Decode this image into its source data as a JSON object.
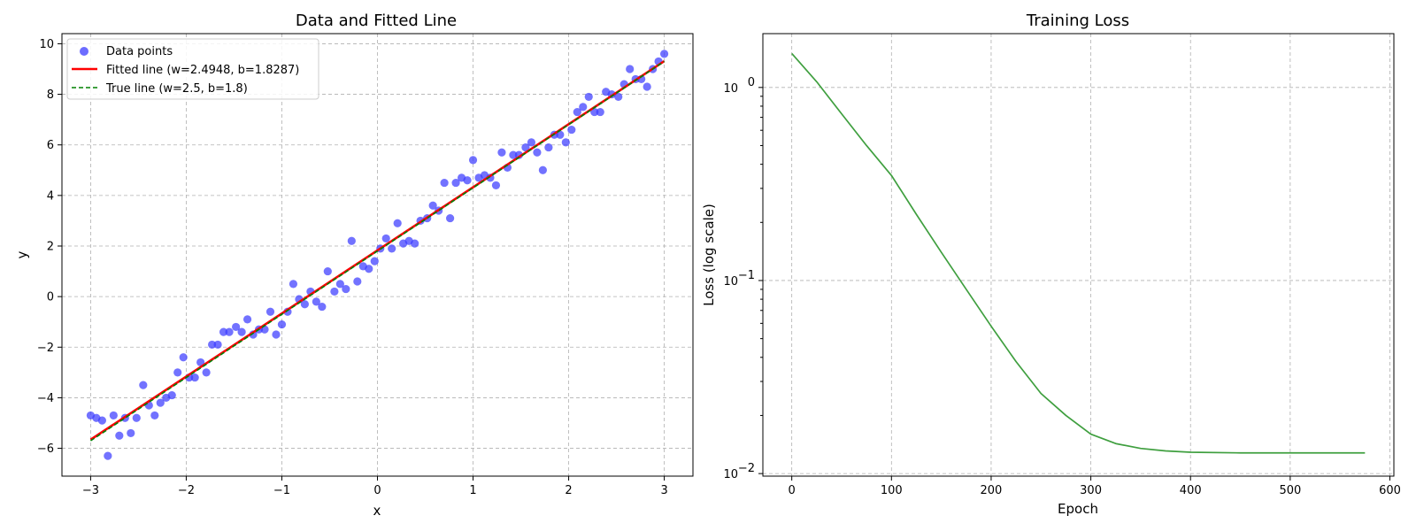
{
  "chart_data": [
    {
      "type": "scatter",
      "title": "Data and Fitted Line",
      "xlabel": "x",
      "ylabel": "y",
      "xlim": [
        -3.3,
        3.3
      ],
      "ylim": [
        -7.1,
        10.4
      ],
      "xticks": [
        -3,
        -2,
        -1,
        0,
        1,
        2,
        3
      ],
      "xtick_labels": [
        "−3",
        "−2",
        "−1",
        "0",
        "1",
        "2",
        "3"
      ],
      "yticks": [
        -6,
        -4,
        -2,
        0,
        2,
        4,
        6,
        8,
        10
      ],
      "ytick_labels": [
        "−6",
        "−4",
        "−2",
        "0",
        "2",
        "4",
        "6",
        "8",
        "10"
      ],
      "grid": true,
      "legend_position": "top-left",
      "series": [
        {
          "name": "Data points",
          "kind": "scatter",
          "color": "#3b3bff",
          "x": [
            -3.0,
            -2.94,
            -2.88,
            -2.82,
            -2.76,
            -2.7,
            -2.64,
            -2.58,
            -2.52,
            -2.45,
            -2.39,
            -2.33,
            -2.27,
            -2.21,
            -2.15,
            -2.09,
            -2.03,
            -1.97,
            -1.91,
            -1.85,
            -1.79,
            -1.73,
            -1.67,
            -1.61,
            -1.55,
            -1.48,
            -1.42,
            -1.36,
            -1.3,
            -1.24,
            -1.18,
            -1.12,
            -1.06,
            -1.0,
            -0.94,
            -0.88,
            -0.82,
            -0.76,
            -0.7,
            -0.64,
            -0.58,
            -0.52,
            -0.45,
            -0.39,
            -0.33,
            -0.27,
            -0.21,
            -0.15,
            -0.09,
            -0.03,
            0.03,
            0.09,
            0.15,
            0.21,
            0.27,
            0.33,
            0.39,
            0.45,
            0.52,
            0.58,
            0.64,
            0.7,
            0.76,
            0.82,
            0.88,
            0.94,
            1.0,
            1.06,
            1.12,
            1.18,
            1.24,
            1.3,
            1.36,
            1.42,
            1.48,
            1.55,
            1.61,
            1.67,
            1.73,
            1.79,
            1.85,
            1.91,
            1.97,
            2.03,
            2.09,
            2.15,
            2.21,
            2.27,
            2.33,
            2.39,
            2.45,
            2.52,
            2.58,
            2.64,
            2.7,
            2.76,
            2.82,
            2.88,
            2.94,
            3.0
          ],
          "y": [
            -4.7,
            -4.8,
            -4.9,
            -6.3,
            -4.7,
            -5.5,
            -4.8,
            -5.4,
            -4.8,
            -3.5,
            -4.3,
            -4.7,
            -4.2,
            -4.0,
            -3.9,
            -3.0,
            -2.4,
            -3.2,
            -3.2,
            -2.6,
            -3.0,
            -1.9,
            -1.9,
            -1.4,
            -1.4,
            -1.2,
            -1.4,
            -0.9,
            -1.5,
            -1.3,
            -1.3,
            -0.6,
            -1.5,
            -1.1,
            -0.6,
            0.5,
            -0.1,
            -0.3,
            0.2,
            -0.2,
            -0.4,
            1.0,
            0.2,
            0.5,
            0.3,
            2.2,
            0.6,
            1.2,
            1.1,
            1.4,
            1.9,
            2.3,
            1.9,
            2.9,
            2.1,
            2.2,
            2.1,
            3.0,
            3.1,
            3.6,
            3.4,
            4.5,
            3.1,
            4.5,
            4.7,
            4.6,
            5.4,
            4.7,
            4.8,
            4.7,
            4.4,
            5.7,
            5.1,
            5.6,
            5.6,
            5.9,
            6.1,
            5.7,
            5.0,
            5.9,
            6.4,
            6.4,
            6.1,
            6.6,
            7.3,
            7.5,
            7.9,
            7.3,
            7.3,
            8.1,
            8.0,
            7.9,
            8.4,
            9.0,
            8.6,
            8.6,
            8.3,
            9.0,
            9.3,
            9.6
          ]
        },
        {
          "name": "Fitted line (w=2.4948, b=1.8287)",
          "kind": "line",
          "color": "#ff0000",
          "w": 2.4948,
          "b": 1.8287,
          "x": [
            -3,
            3
          ]
        },
        {
          "name": "True line (w=2.5, b=1.8)",
          "kind": "dashed-line",
          "color": "#008000",
          "w": 2.5,
          "b": 1.8,
          "x": [
            -3,
            3
          ]
        }
      ]
    },
    {
      "type": "line",
      "title": "Training Loss",
      "xlabel": "Epoch",
      "ylabel": "Loss (log scale)",
      "yscale": "log",
      "xlim": [
        -29,
        604
      ],
      "ylim": [
        0.0097,
        1.9
      ],
      "xticks": [
        0,
        100,
        200,
        300,
        400,
        500,
        600
      ],
      "xtick_labels": [
        "0",
        "100",
        "200",
        "300",
        "400",
        "500",
        "600"
      ],
      "yticks": [
        0.01,
        0.1,
        1
      ],
      "ytick_base": "10",
      "ytick_exponents": [
        "−2",
        "−1",
        "0"
      ],
      "grid": true,
      "series": [
        {
          "kind": "line",
          "color": "#3f9f3f",
          "x": [
            0,
            25,
            50,
            75,
            100,
            125,
            150,
            175,
            200,
            225,
            250,
            275,
            300,
            325,
            350,
            375,
            400,
            450,
            500,
            550,
            575
          ],
          "y": [
            1.5,
            1.07,
            0.73,
            0.5,
            0.35,
            0.22,
            0.14,
            0.09,
            0.058,
            0.038,
            0.026,
            0.02,
            0.016,
            0.0143,
            0.0135,
            0.0131,
            0.0129,
            0.0128,
            0.0128,
            0.0128,
            0.0128
          ]
        }
      ]
    }
  ]
}
